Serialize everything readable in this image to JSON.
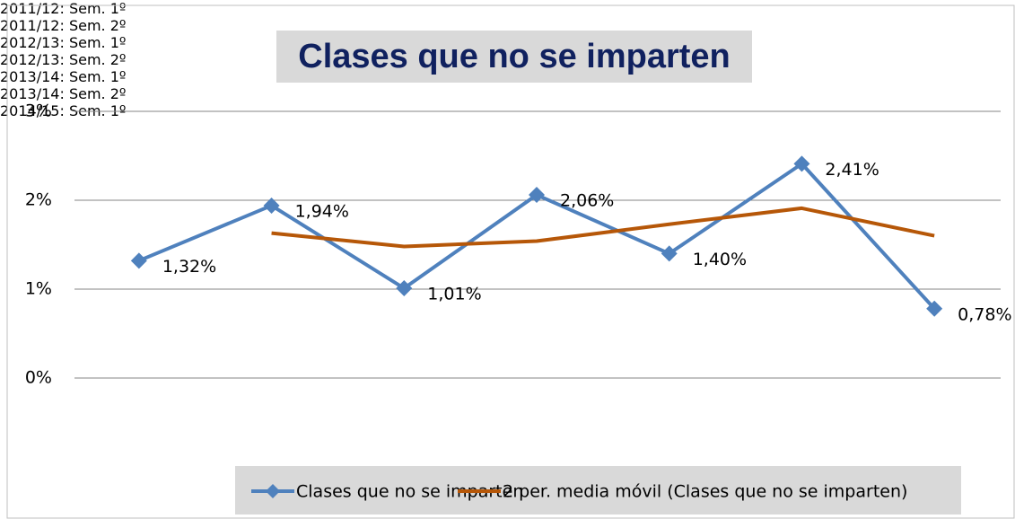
{
  "chart_data": {
    "type": "line",
    "title": "Clases que no se imparten",
    "categories": [
      "2011/12:\nSem. 1º",
      "2011/12:\nSem. 2º",
      "2012/13:\nSem. 1º",
      "2012/13:\nSem. 2º",
      "2013/14:\nSem. 1º",
      "2013/14:\nSem. 2º",
      "2014/15:\nSem. 1º"
    ],
    "series": [
      {
        "name": "Clases que no se imparten",
        "color": "#4f81bd",
        "values": [
          1.32,
          1.94,
          1.01,
          2.06,
          1.4,
          2.41,
          0.78
        ],
        "value_labels": [
          "1,32%",
          "1,94%",
          "1,01%",
          "2,06%",
          "1,40%",
          "2,41%",
          "0,78%"
        ]
      },
      {
        "name": "2 per. media móvil (Clases que no se imparten)",
        "color": "#b65708",
        "values": [
          null,
          1.63,
          1.48,
          1.54,
          1.73,
          1.91,
          1.6
        ]
      }
    ],
    "ylim": [
      0,
      3
    ],
    "yticks": [
      {
        "value": 0,
        "label": "0%"
      },
      {
        "value": 1,
        "label": "1%"
      },
      {
        "value": 2,
        "label": "2%"
      },
      {
        "value": 3,
        "label": "3%"
      }
    ],
    "grid": true
  }
}
